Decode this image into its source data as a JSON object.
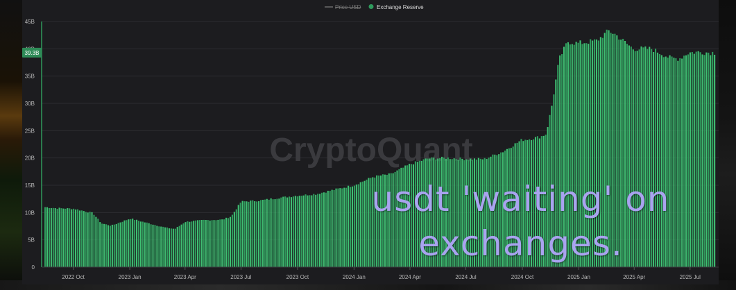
{
  "legend": {
    "items": [
      {
        "label": "Price USD",
        "active": false,
        "color": "#8a8a8a"
      },
      {
        "label": "Exchange Reserve",
        "active": true,
        "color": "#2e9a5c"
      }
    ]
  },
  "watermark": "CryptoQuant",
  "overlay_text": {
    "line1": "usdt 'waiting' on",
    "line2": "exchanges."
  },
  "colors": {
    "bar": "#2f9c5d",
    "bar_highlight": "#3fbf72",
    "panel": "#1c1c1f",
    "grid": "#2c2c30",
    "axis_text": "#b9b9b9",
    "badge": "#2e8b57",
    "overlay_text": "#a9a3ef"
  },
  "chart_data": {
    "type": "bar",
    "series": [
      {
        "name": "Exchange Reserve",
        "x": [
          "2022-08-15",
          "2022-09-01",
          "2022-10-01",
          "2022-11-01",
          "2022-11-15",
          "2022-12-01",
          "2023-01-01",
          "2023-02-01",
          "2023-03-01",
          "2023-03-15",
          "2023-04-01",
          "2023-05-01",
          "2023-06-01",
          "2023-06-15",
          "2023-07-01",
          "2023-08-01",
          "2023-09-01",
          "2023-10-01",
          "2023-11-01",
          "2023-12-01",
          "2024-01-01",
          "2024-02-01",
          "2024-02-15",
          "2024-03-01",
          "2024-04-01",
          "2024-05-01",
          "2024-06-01",
          "2024-07-01",
          "2024-08-01",
          "2024-09-01",
          "2024-10-01",
          "2024-10-15",
          "2024-11-01",
          "2024-11-10",
          "2024-11-20",
          "2024-12-01",
          "2024-12-15",
          "2025-01-01",
          "2025-02-01",
          "2025-02-20",
          "2025-03-01",
          "2025-04-01",
          "2025-05-01",
          "2025-06-01",
          "2025-06-15",
          "2025-07-01",
          "2025-07-15",
          "2025-08-10"
        ],
        "values": [
          11.0,
          10.8,
          10.7,
          9.9,
          8.0,
          7.6,
          8.9,
          8.0,
          7.2,
          7.0,
          8.3,
          8.6,
          8.7,
          9.3,
          12.0,
          12.2,
          12.7,
          13.1,
          13.4,
          14.2,
          15.0,
          16.5,
          16.8,
          17.0,
          18.8,
          19.9,
          20.0,
          19.8,
          19.8,
          21.2,
          23.3,
          23.5,
          23.9,
          24.4,
          30.0,
          38.0,
          41.3,
          41.0,
          41.5,
          43.3,
          42.8,
          40.0,
          40.0,
          38.3,
          38.2,
          39.3,
          39.4,
          39.3
        ]
      }
    ],
    "x_ticks": [
      "2022 Oct",
      "2023 Jan",
      "2023 Apr",
      "2023 Jul",
      "2023 Oct",
      "2024 Jan",
      "2024 Apr",
      "2024 Jul",
      "2024 Oct",
      "2025 Jan",
      "2025 Apr",
      "2025 Jul"
    ],
    "y_ticks": [
      "0",
      "5B",
      "10B",
      "15B",
      "20B",
      "25B",
      "30B",
      "35B",
      "40B",
      "45B"
    ],
    "ylim": [
      0,
      45
    ],
    "current_value_badge": "39.3B",
    "current_value": 39.3,
    "grid": true,
    "legend_position": "top-center",
    "title": ""
  }
}
